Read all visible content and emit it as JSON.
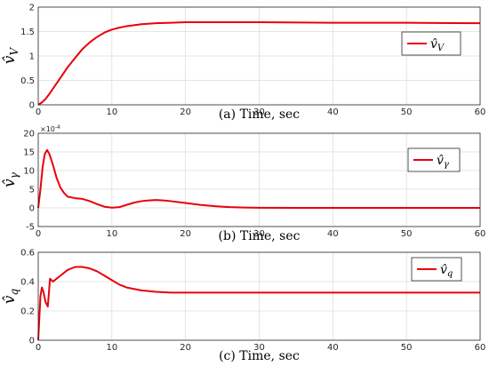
{
  "chart_data": [
    {
      "type": "line",
      "caption": "(a) Time, sec",
      "ylabel": "v̂",
      "ylabel_sub": "V",
      "xlim": [
        0,
        60
      ],
      "ylim": [
        0,
        2
      ],
      "xticks": [
        "0",
        "10",
        "20",
        "30",
        "40",
        "50",
        "60"
      ],
      "yticks": [
        "0",
        "0.5",
        "1",
        "1.5",
        "2"
      ],
      "grid": true,
      "legend_position": "top-right",
      "series": [
        {
          "name": "v̂_V",
          "color": "#e8000b",
          "x": [
            0,
            0.5,
            1,
            1.5,
            2,
            3,
            4,
            5,
            6,
            7,
            8,
            9,
            10,
            11,
            12,
            14,
            16,
            18,
            20,
            25,
            30,
            40,
            50,
            60
          ],
          "y": [
            0,
            0.05,
            0.12,
            0.22,
            0.33,
            0.55,
            0.77,
            0.96,
            1.14,
            1.28,
            1.39,
            1.48,
            1.54,
            1.58,
            1.61,
            1.65,
            1.67,
            1.68,
            1.69,
            1.69,
            1.69,
            1.68,
            1.68,
            1.67
          ]
        }
      ]
    },
    {
      "type": "line",
      "caption": "(b) Time, sec",
      "ylabel": "v̂",
      "ylabel_sub": "γ",
      "multiplier_base": "×10",
      "multiplier_exp": "-4",
      "xlim": [
        0,
        60
      ],
      "ylim": [
        -5,
        20
      ],
      "xticks": [
        "0",
        "10",
        "20",
        "30",
        "40",
        "50",
        "60"
      ],
      "yticks": [
        "-5",
        "0",
        "5",
        "10",
        "15",
        "20"
      ],
      "grid": true,
      "legend_position": "top-right",
      "series": [
        {
          "name": "v̂_γ",
          "color": "#e8000b",
          "x": [
            0,
            0.3,
            0.6,
            0.9,
            1.2,
            1.5,
            2,
            2.5,
            3,
            3.5,
            4,
            5,
            6,
            7,
            8,
            9,
            10,
            11,
            12,
            13,
            14,
            15,
            16,
            17,
            18,
            20,
            22,
            24,
            26,
            28,
            30,
            35,
            40,
            50,
            60
          ],
          "y": [
            0,
            5,
            11,
            14.5,
            15.5,
            14.5,
            11.5,
            8,
            5.5,
            4,
            3,
            2.6,
            2.4,
            1.8,
            1.0,
            0.3,
            0.05,
            0.2,
            0.8,
            1.4,
            1.8,
            2.0,
            2.1,
            2.0,
            1.8,
            1.3,
            0.8,
            0.45,
            0.2,
            0.08,
            0.03,
            0.0,
            0.0,
            0.0,
            0.0
          ]
        }
      ]
    },
    {
      "type": "line",
      "caption": "(c) Time, sec",
      "ylabel": "v̂",
      "ylabel_sub": "q",
      "xlim": [
        0,
        60
      ],
      "ylim": [
        0,
        0.6
      ],
      "xticks": [
        "0",
        "10",
        "20",
        "30",
        "40",
        "50",
        "60"
      ],
      "yticks": [
        "0",
        "0.2",
        "0.4",
        "0.6"
      ],
      "grid": true,
      "legend_position": "top-right",
      "series": [
        {
          "name": "v̂_q",
          "color": "#e8000b",
          "x": [
            0,
            0.15,
            0.3,
            0.5,
            0.7,
            1.0,
            1.3,
            1.6,
            2,
            2.5,
            3,
            4,
            5,
            6,
            7,
            8,
            9,
            10,
            11,
            12,
            14,
            16,
            18,
            20,
            25,
            30,
            40,
            50,
            60
          ],
          "y": [
            0,
            0.15,
            0.3,
            0.36,
            0.33,
            0.26,
            0.23,
            0.42,
            0.4,
            0.42,
            0.44,
            0.48,
            0.5,
            0.5,
            0.49,
            0.47,
            0.44,
            0.41,
            0.38,
            0.36,
            0.34,
            0.33,
            0.325,
            0.325,
            0.325,
            0.325,
            0.325,
            0.325,
            0.325
          ]
        }
      ]
    }
  ]
}
